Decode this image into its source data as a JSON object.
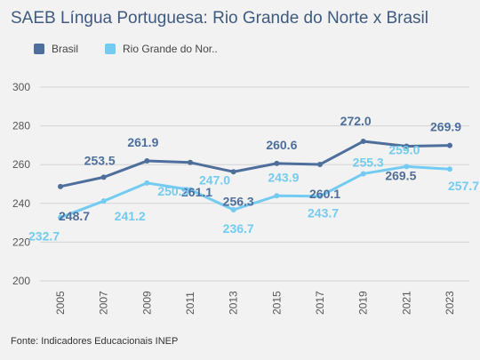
{
  "page": {
    "title": "SAEB Língua Portuguesa: Rio Grande do Norte x Brasil",
    "source": "Fonte: Indicadores Educacionais INEP"
  },
  "legend": [
    {
      "label": "Brasil",
      "color": "#4e6e9c"
    },
    {
      "label": "Rio Grande do Nor..",
      "color": "#74cbf2"
    }
  ],
  "chart_data": {
    "type": "line",
    "title": "SAEB Língua Portuguesa: Rio Grande do Norte x Brasil",
    "x": [
      "2005",
      "2007",
      "2009",
      "2011",
      "2013",
      "2015",
      "2017",
      "2019",
      "2021",
      "2023"
    ],
    "series": [
      {
        "name": "Brasil",
        "color": "#4e6e9c",
        "values": [
          248.7,
          253.5,
          261.9,
          261.1,
          256.3,
          260.6,
          260.1,
          272.0,
          269.5,
          269.9
        ]
      },
      {
        "name": "Rio Grande do Nor..",
        "color": "#74cbf2",
        "values": [
          232.7,
          241.2,
          250.5,
          247.0,
          236.7,
          243.9,
          243.7,
          255.3,
          259.0,
          257.7
        ]
      }
    ],
    "data_labels": {
      "Brasil": [
        "248.7",
        "253.5",
        "261.9",
        "261.1",
        "256.3",
        "260.6",
        "260.1",
        "272.0",
        "269.5",
        "269.9"
      ],
      "Rio Grande do Nor..": [
        "232.7",
        "241.2",
        "250.5",
        "247.0",
        "236.7",
        "243.9",
        "243.7",
        "255.3",
        "259.0",
        "257.7"
      ]
    },
    "yticks": [
      "200",
      "220",
      "240",
      "260",
      "280",
      "300"
    ],
    "ylim": [
      200,
      300
    ],
    "grid": true,
    "legend_position": "top-left",
    "xlabel": "",
    "ylabel": ""
  }
}
